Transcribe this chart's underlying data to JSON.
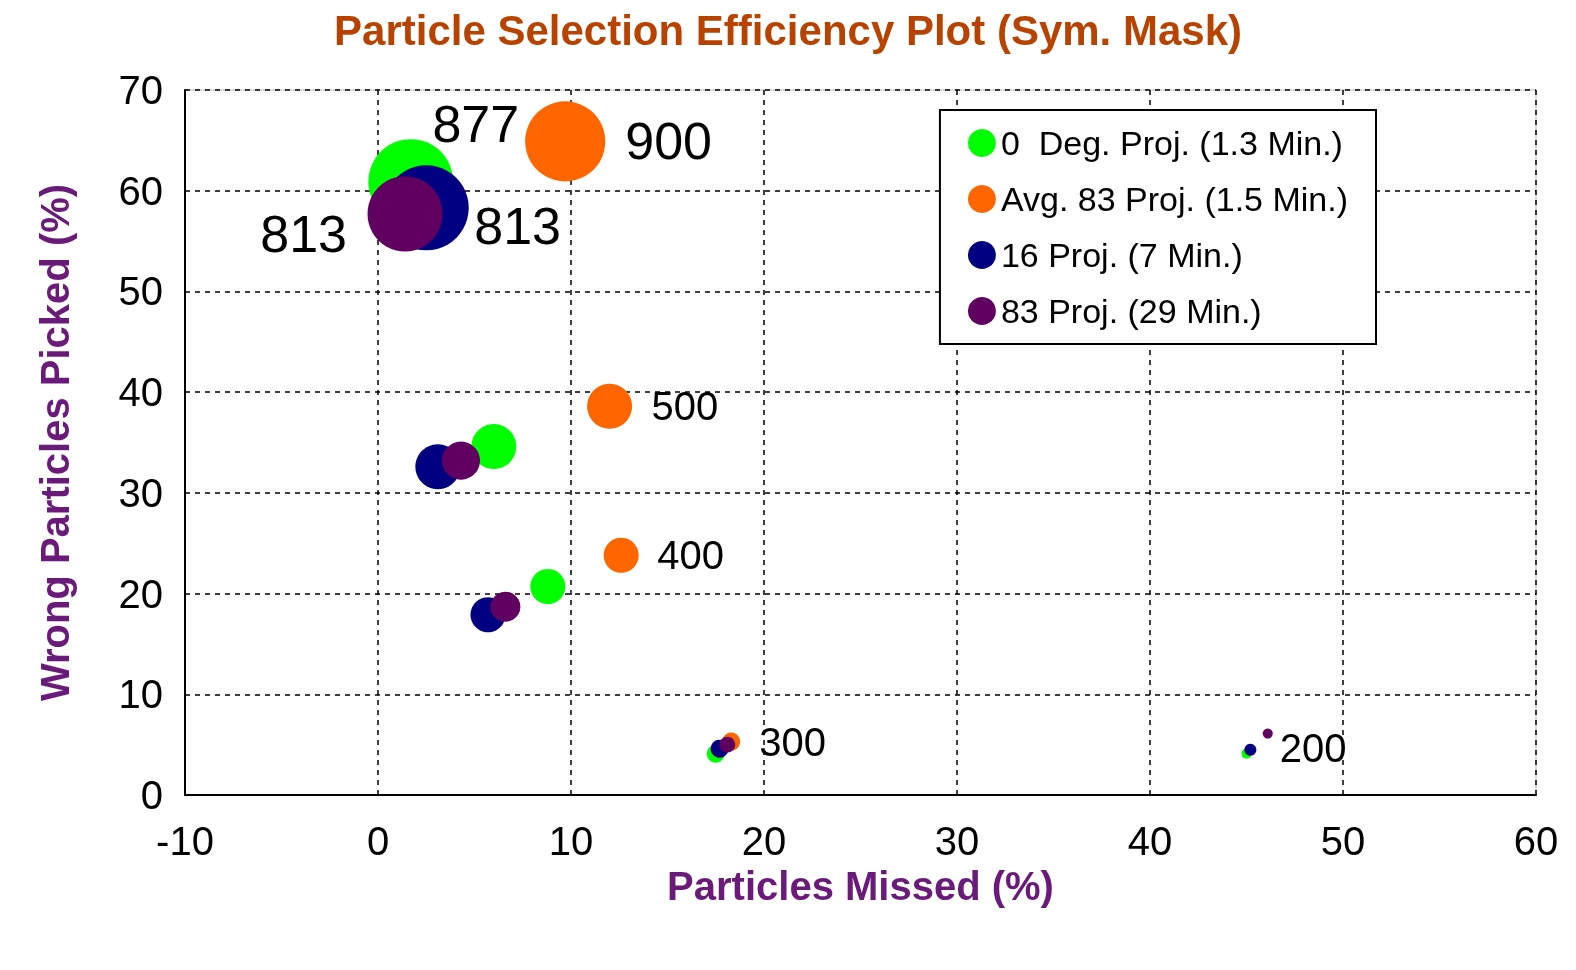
{
  "chart_data": {
    "type": "bubble",
    "title": "Particle Selection Efficiency Plot (Sym. Mask)",
    "xlabel": "Particles Missed (%)",
    "ylabel": "Wrong Particles Picked (%)",
    "xlim": [
      -10,
      60
    ],
    "xticks": [
      -10,
      0,
      10,
      20,
      30,
      40,
      50,
      60
    ],
    "ylim": [
      0,
      70
    ],
    "yticks": [
      0,
      10,
      20,
      30,
      40,
      50,
      60,
      70
    ],
    "grid": true,
    "legend": "top right",
    "marker": "circle",
    "series": [
      {
        "name": "0  Deg. Proj. (1.3 Min.)",
        "color": "#00ff00",
        "x": [
          1.7,
          6.0,
          8.8,
          17.5,
          45.0
        ],
        "values": [
          60.9,
          34.6,
          20.7,
          4.1,
          4.1
        ],
        "sizes": [
          1,
          0.28,
          0.17,
          0.045,
          0.014
        ]
      },
      {
        "name": "Avg. 83 Proj. (1.5 Min.)",
        "color": "#ff6600",
        "x": [
          9.7,
          12.0,
          12.6,
          18.3
        ],
        "values": [
          64.9,
          38.6,
          23.8,
          5.3
        ],
        "sizes": [
          0.89,
          0.28,
          0.17,
          0.045
        ]
      },
      {
        "name": "16 Proj. (7 Min.)",
        "color": "#000080",
        "x": [
          2.5,
          3.1,
          5.7,
          17.7,
          45.2
        ],
        "values": [
          58.3,
          32.6,
          17.9,
          4.6,
          4.5
        ],
        "sizes": [
          1,
          0.28,
          0.17,
          0.045,
          0.02
        ]
      },
      {
        "name": "83 Proj. (29 Min.)",
        "color": "#600060",
        "x": [
          1.4,
          4.3,
          6.6,
          18.1,
          46.1
        ],
        "values": [
          57.7,
          33.2,
          18.7,
          5.0,
          6.1
        ],
        "sizes": [
          0.78,
          0.2,
          0.125,
          0.035,
          0.014
        ]
      }
    ],
    "annotations": [
      {
        "text": "877",
        "x": 1.7,
        "y": 60.9
      },
      {
        "text": "900",
        "x": 9.7,
        "y": 64.9
      },
      {
        "text": "813",
        "x": 1.4,
        "y": 57.7
      },
      {
        "text": "813",
        "x": 2.5,
        "y": 58.3
      },
      {
        "text": "500",
        "x": 12.0,
        "y": 38.6
      },
      {
        "text": "400",
        "x": 12.6,
        "y": 23.8
      },
      {
        "text": "300",
        "x": 18.3,
        "y": 5.3
      },
      {
        "text": "200",
        "x": 46.1,
        "y": 6.1
      }
    ]
  }
}
